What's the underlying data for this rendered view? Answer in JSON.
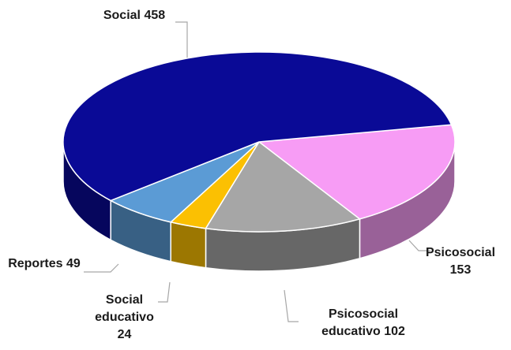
{
  "chart_data": {
    "type": "pie",
    "categories": [
      "Psicosocial",
      "Psicosocial educativo",
      "Social educativo",
      "Reportes",
      "Social"
    ],
    "values": [
      153,
      102,
      24,
      49,
      458
    ],
    "colors": [
      "#f79cf5",
      "#a6a6a6",
      "#fbc002",
      "#5b9bd5",
      "#0a0a96"
    ]
  }
}
